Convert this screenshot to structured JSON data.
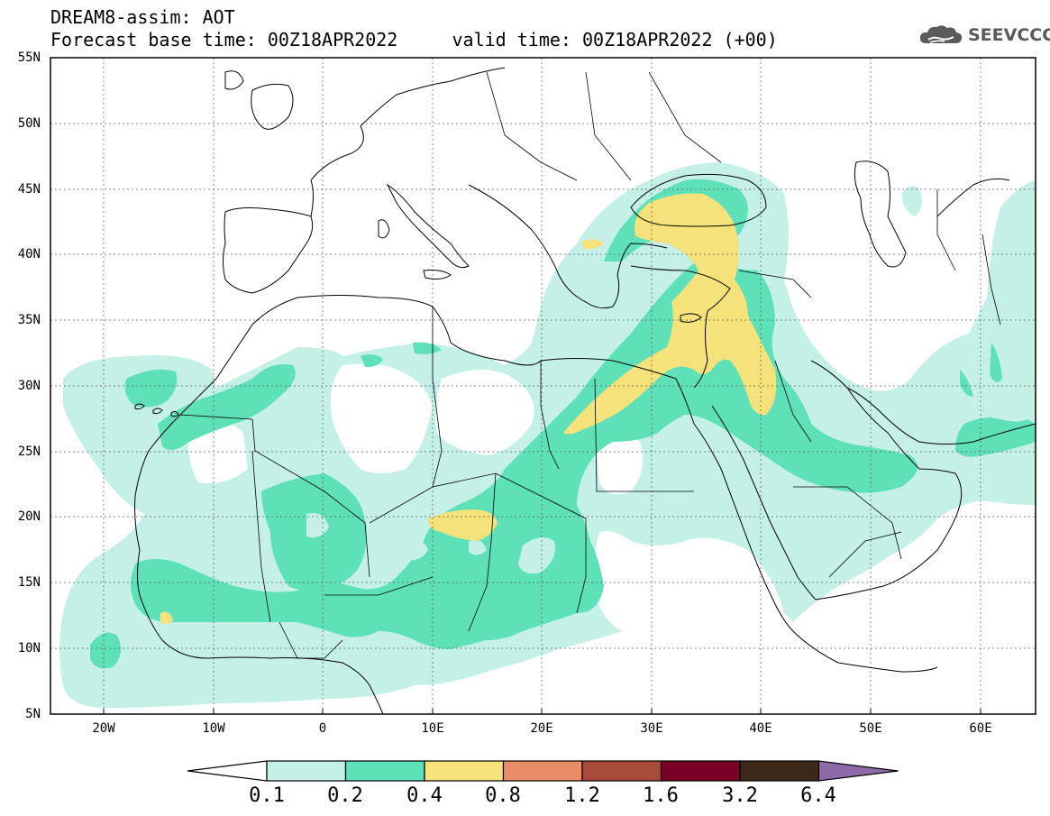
{
  "header": {
    "line1": "DREAM8-assim: AOT",
    "line2": "Forecast base time: 00Z18APR2022     valid time: 00Z18APR2022 (+00)"
  },
  "logo": {
    "icon": "cloud-icon",
    "text": "SEEVCCC",
    "color": "#5a5a5a"
  },
  "map": {
    "lon_range": [
      -25,
      65
    ],
    "lat_range": [
      5,
      55
    ],
    "grid": true,
    "lat_labels": [
      "55N",
      "50N",
      "45N",
      "40N",
      "35N",
      "30N",
      "25N",
      "20N",
      "15N",
      "10N",
      "5N"
    ],
    "lon_labels": [
      "20W",
      "10W",
      "0",
      "10E",
      "20E",
      "30E",
      "40E",
      "50E",
      "60E"
    ]
  },
  "colorbar": {
    "labels": [
      "0.1",
      "0.2",
      "0.4",
      "0.8",
      "1.2",
      "1.6",
      "3.2",
      "6.4"
    ],
    "colors": [
      "#ffffff",
      "#c4f0e8",
      "#5ee0b8",
      "#f5e27a",
      "#e98c68",
      "#a84a3a",
      "#7a0025",
      "#3b2818",
      "#8e6aa8"
    ]
  }
}
